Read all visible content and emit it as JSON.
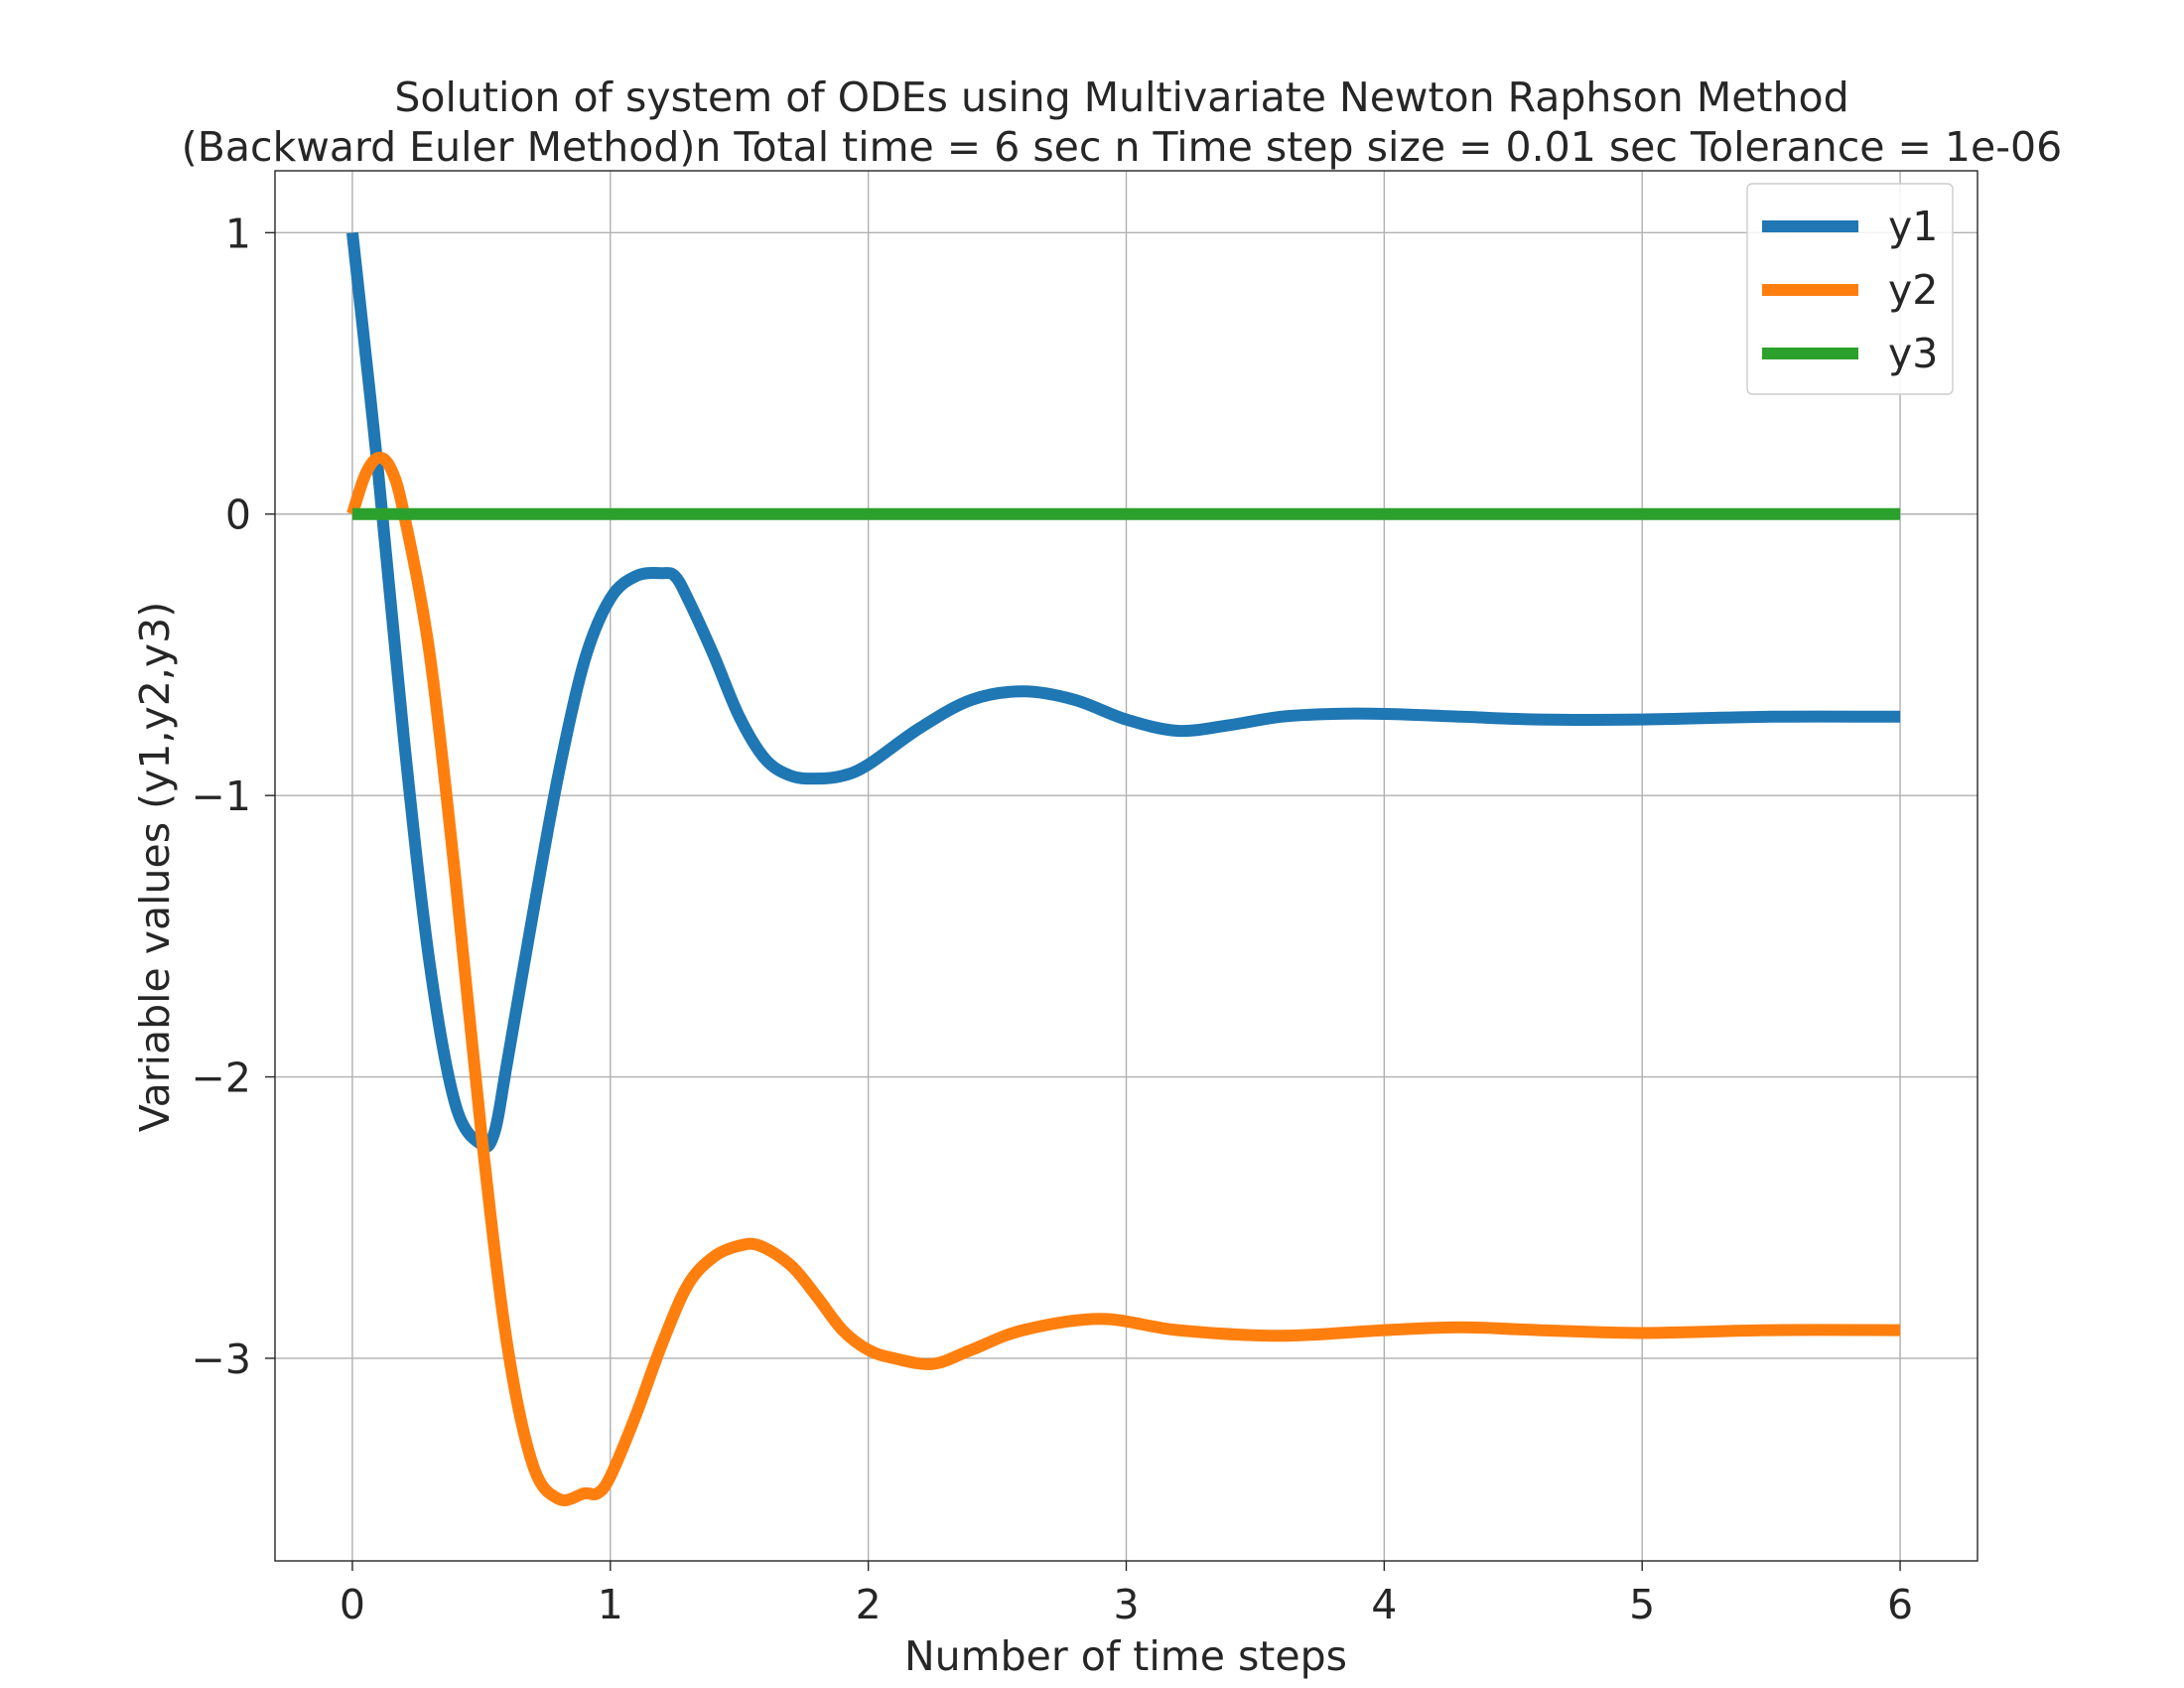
{
  "chart_data": {
    "type": "line",
    "title": "Solution of system of ODEs using Multivariate Newton Raphson Method",
    "subtitle": "(Backward Euler Method)n Total time = 6 sec n Time step size = 0.01 sec Tolerance = 1e-06",
    "xlabel": "Number of time steps",
    "ylabel": "Variable values (y1,y2,y3)",
    "xlim": [
      -0.3,
      6.3
    ],
    "ylim": [
      -3.72,
      1.22
    ],
    "xticks": [
      0,
      1,
      2,
      3,
      4,
      5,
      6
    ],
    "xtick_labels": [
      "0",
      "1",
      "2",
      "3",
      "4",
      "5",
      "6"
    ],
    "yticks": [
      1,
      0,
      -1,
      -2,
      -3
    ],
    "ytick_labels": [
      "1",
      "0",
      "−1",
      "−2",
      "−3"
    ],
    "grid": true,
    "legend_placement": "top-right",
    "series": [
      {
        "name": "y1",
        "color": "#1f77b4",
        "x": [
          0,
          0.1,
          0.2,
          0.3,
          0.4,
          0.5,
          0.55,
          0.6,
          0.7,
          0.8,
          0.9,
          1.0,
          1.1,
          1.2,
          1.25,
          1.3,
          1.4,
          1.5,
          1.6,
          1.7,
          1.8,
          1.9,
          2.0,
          2.2,
          2.4,
          2.6,
          2.8,
          3.0,
          3.2,
          3.4,
          3.6,
          3.8,
          4.0,
          4.3,
          4.6,
          5.0,
          5.5,
          6.0
        ],
        "y": [
          1.0,
          0.15,
          -0.8,
          -1.6,
          -2.1,
          -2.24,
          -2.2,
          -1.95,
          -1.42,
          -0.92,
          -0.52,
          -0.3,
          -0.22,
          -0.21,
          -0.22,
          -0.3,
          -0.5,
          -0.72,
          -0.87,
          -0.93,
          -0.94,
          -0.93,
          -0.89,
          -0.76,
          -0.66,
          -0.63,
          -0.66,
          -0.73,
          -0.77,
          -0.75,
          -0.72,
          -0.71,
          -0.71,
          -0.72,
          -0.73,
          -0.73,
          -0.72,
          -0.72
        ]
      },
      {
        "name": "y2",
        "color": "#ff7f0e",
        "x": [
          0,
          0.05,
          0.1,
          0.15,
          0.2,
          0.3,
          0.4,
          0.5,
          0.6,
          0.7,
          0.8,
          0.9,
          0.95,
          1.0,
          1.1,
          1.2,
          1.3,
          1.4,
          1.5,
          1.58,
          1.7,
          1.8,
          1.9,
          2.0,
          2.1,
          2.25,
          2.4,
          2.6,
          2.9,
          3.2,
          3.6,
          4.0,
          4.3,
          4.6,
          5.0,
          5.5,
          6.0
        ],
        "y": [
          0.0,
          0.14,
          0.2,
          0.16,
          0.0,
          -0.5,
          -1.3,
          -2.2,
          -2.95,
          -3.38,
          -3.5,
          -3.48,
          -3.48,
          -3.42,
          -3.2,
          -2.95,
          -2.74,
          -2.64,
          -2.6,
          -2.6,
          -2.67,
          -2.78,
          -2.9,
          -2.97,
          -3.0,
          -3.02,
          -2.97,
          -2.9,
          -2.86,
          -2.9,
          -2.92,
          -2.9,
          -2.89,
          -2.9,
          -2.91,
          -2.9,
          -2.9
        ]
      },
      {
        "name": "y3",
        "color": "#2ca02c",
        "x": [
          0,
          6.0
        ],
        "y": [
          0.0,
          0.0
        ]
      }
    ]
  }
}
